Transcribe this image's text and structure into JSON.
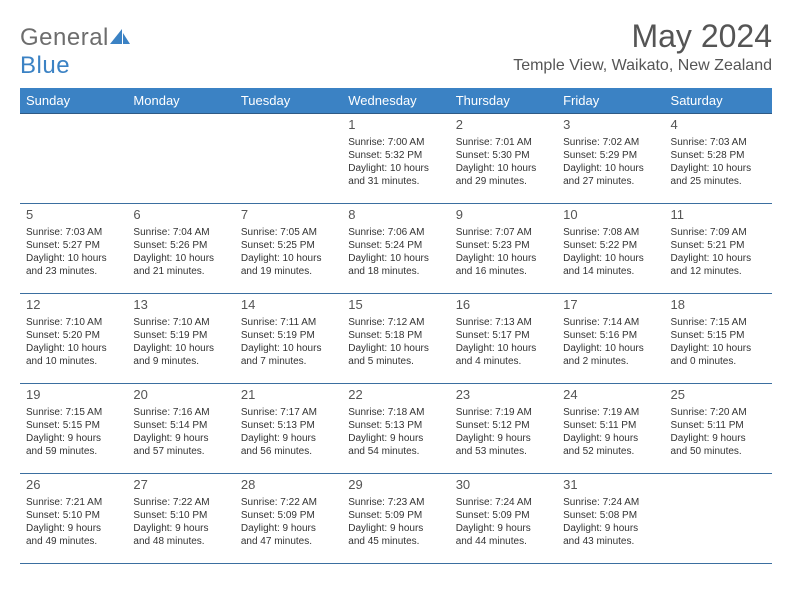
{
  "brand": {
    "name_part1": "General",
    "name_part2": "Blue"
  },
  "title": {
    "month": "May 2024",
    "location": "Temple View, Waikato, New Zealand"
  },
  "colors": {
    "header_bg": "#3b82c4",
    "header_text": "#ffffff",
    "border": "#3b6fa0",
    "page_bg": "#ffffff",
    "text": "#333333",
    "title_text": "#555555",
    "logo_gray": "#6d6d6d",
    "logo_blue": "#3b82c4"
  },
  "day_headers": [
    "Sunday",
    "Monday",
    "Tuesday",
    "Wednesday",
    "Thursday",
    "Friday",
    "Saturday"
  ],
  "weeks": [
    [
      null,
      null,
      null,
      {
        "n": "1",
        "sr": "Sunrise: 7:00 AM",
        "ss": "Sunset: 5:32 PM",
        "d1": "Daylight: 10 hours",
        "d2": "and 31 minutes."
      },
      {
        "n": "2",
        "sr": "Sunrise: 7:01 AM",
        "ss": "Sunset: 5:30 PM",
        "d1": "Daylight: 10 hours",
        "d2": "and 29 minutes."
      },
      {
        "n": "3",
        "sr": "Sunrise: 7:02 AM",
        "ss": "Sunset: 5:29 PM",
        "d1": "Daylight: 10 hours",
        "d2": "and 27 minutes."
      },
      {
        "n": "4",
        "sr": "Sunrise: 7:03 AM",
        "ss": "Sunset: 5:28 PM",
        "d1": "Daylight: 10 hours",
        "d2": "and 25 minutes."
      }
    ],
    [
      {
        "n": "5",
        "sr": "Sunrise: 7:03 AM",
        "ss": "Sunset: 5:27 PM",
        "d1": "Daylight: 10 hours",
        "d2": "and 23 minutes."
      },
      {
        "n": "6",
        "sr": "Sunrise: 7:04 AM",
        "ss": "Sunset: 5:26 PM",
        "d1": "Daylight: 10 hours",
        "d2": "and 21 minutes."
      },
      {
        "n": "7",
        "sr": "Sunrise: 7:05 AM",
        "ss": "Sunset: 5:25 PM",
        "d1": "Daylight: 10 hours",
        "d2": "and 19 minutes."
      },
      {
        "n": "8",
        "sr": "Sunrise: 7:06 AM",
        "ss": "Sunset: 5:24 PM",
        "d1": "Daylight: 10 hours",
        "d2": "and 18 minutes."
      },
      {
        "n": "9",
        "sr": "Sunrise: 7:07 AM",
        "ss": "Sunset: 5:23 PM",
        "d1": "Daylight: 10 hours",
        "d2": "and 16 minutes."
      },
      {
        "n": "10",
        "sr": "Sunrise: 7:08 AM",
        "ss": "Sunset: 5:22 PM",
        "d1": "Daylight: 10 hours",
        "d2": "and 14 minutes."
      },
      {
        "n": "11",
        "sr": "Sunrise: 7:09 AM",
        "ss": "Sunset: 5:21 PM",
        "d1": "Daylight: 10 hours",
        "d2": "and 12 minutes."
      }
    ],
    [
      {
        "n": "12",
        "sr": "Sunrise: 7:10 AM",
        "ss": "Sunset: 5:20 PM",
        "d1": "Daylight: 10 hours",
        "d2": "and 10 minutes."
      },
      {
        "n": "13",
        "sr": "Sunrise: 7:10 AM",
        "ss": "Sunset: 5:19 PM",
        "d1": "Daylight: 10 hours",
        "d2": "and 9 minutes."
      },
      {
        "n": "14",
        "sr": "Sunrise: 7:11 AM",
        "ss": "Sunset: 5:19 PM",
        "d1": "Daylight: 10 hours",
        "d2": "and 7 minutes."
      },
      {
        "n": "15",
        "sr": "Sunrise: 7:12 AM",
        "ss": "Sunset: 5:18 PM",
        "d1": "Daylight: 10 hours",
        "d2": "and 5 minutes."
      },
      {
        "n": "16",
        "sr": "Sunrise: 7:13 AM",
        "ss": "Sunset: 5:17 PM",
        "d1": "Daylight: 10 hours",
        "d2": "and 4 minutes."
      },
      {
        "n": "17",
        "sr": "Sunrise: 7:14 AM",
        "ss": "Sunset: 5:16 PM",
        "d1": "Daylight: 10 hours",
        "d2": "and 2 minutes."
      },
      {
        "n": "18",
        "sr": "Sunrise: 7:15 AM",
        "ss": "Sunset: 5:15 PM",
        "d1": "Daylight: 10 hours",
        "d2": "and 0 minutes."
      }
    ],
    [
      {
        "n": "19",
        "sr": "Sunrise: 7:15 AM",
        "ss": "Sunset: 5:15 PM",
        "d1": "Daylight: 9 hours",
        "d2": "and 59 minutes."
      },
      {
        "n": "20",
        "sr": "Sunrise: 7:16 AM",
        "ss": "Sunset: 5:14 PM",
        "d1": "Daylight: 9 hours",
        "d2": "and 57 minutes."
      },
      {
        "n": "21",
        "sr": "Sunrise: 7:17 AM",
        "ss": "Sunset: 5:13 PM",
        "d1": "Daylight: 9 hours",
        "d2": "and 56 minutes."
      },
      {
        "n": "22",
        "sr": "Sunrise: 7:18 AM",
        "ss": "Sunset: 5:13 PM",
        "d1": "Daylight: 9 hours",
        "d2": "and 54 minutes."
      },
      {
        "n": "23",
        "sr": "Sunrise: 7:19 AM",
        "ss": "Sunset: 5:12 PM",
        "d1": "Daylight: 9 hours",
        "d2": "and 53 minutes."
      },
      {
        "n": "24",
        "sr": "Sunrise: 7:19 AM",
        "ss": "Sunset: 5:11 PM",
        "d1": "Daylight: 9 hours",
        "d2": "and 52 minutes."
      },
      {
        "n": "25",
        "sr": "Sunrise: 7:20 AM",
        "ss": "Sunset: 5:11 PM",
        "d1": "Daylight: 9 hours",
        "d2": "and 50 minutes."
      }
    ],
    [
      {
        "n": "26",
        "sr": "Sunrise: 7:21 AM",
        "ss": "Sunset: 5:10 PM",
        "d1": "Daylight: 9 hours",
        "d2": "and 49 minutes."
      },
      {
        "n": "27",
        "sr": "Sunrise: 7:22 AM",
        "ss": "Sunset: 5:10 PM",
        "d1": "Daylight: 9 hours",
        "d2": "and 48 minutes."
      },
      {
        "n": "28",
        "sr": "Sunrise: 7:22 AM",
        "ss": "Sunset: 5:09 PM",
        "d1": "Daylight: 9 hours",
        "d2": "and 47 minutes."
      },
      {
        "n": "29",
        "sr": "Sunrise: 7:23 AM",
        "ss": "Sunset: 5:09 PM",
        "d1": "Daylight: 9 hours",
        "d2": "and 45 minutes."
      },
      {
        "n": "30",
        "sr": "Sunrise: 7:24 AM",
        "ss": "Sunset: 5:09 PM",
        "d1": "Daylight: 9 hours",
        "d2": "and 44 minutes."
      },
      {
        "n": "31",
        "sr": "Sunrise: 7:24 AM",
        "ss": "Sunset: 5:08 PM",
        "d1": "Daylight: 9 hours",
        "d2": "and 43 minutes."
      },
      null
    ]
  ]
}
